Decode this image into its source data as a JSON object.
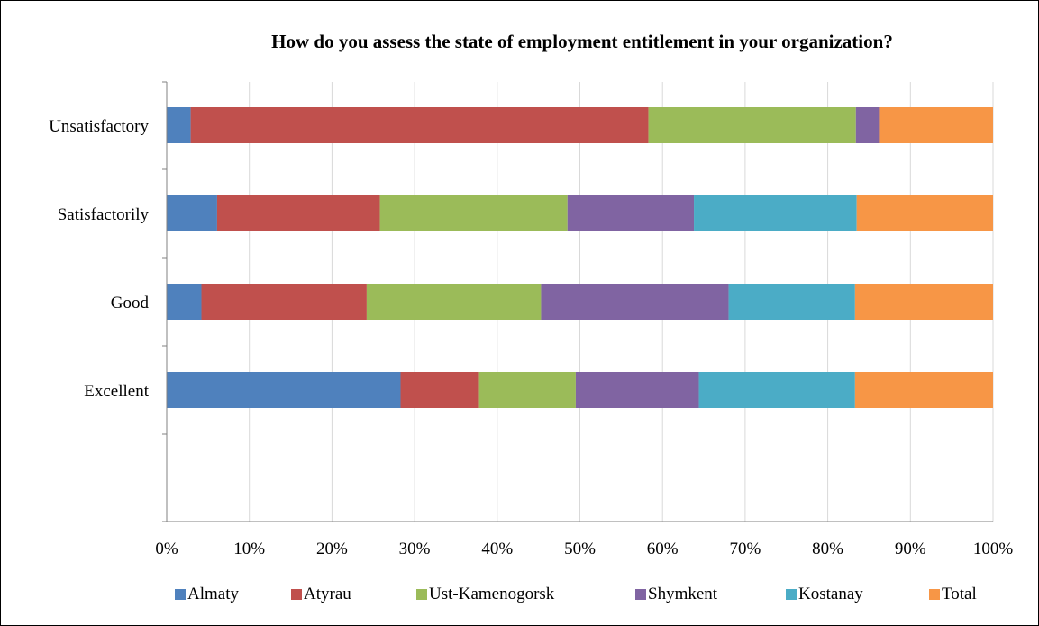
{
  "chart_data": {
    "type": "bar",
    "orientation": "horizontal",
    "stacked": "percent",
    "title": "How do you assess the state of employment entitlement in your organization?",
    "xlabel": "",
    "ylabel": "",
    "xlim": [
      0,
      100
    ],
    "x_ticks": [
      "0%",
      "10%",
      "20%",
      "30%",
      "40%",
      "50%",
      "60%",
      "70%",
      "80%",
      "90%",
      "100%"
    ],
    "categories": [
      "Excellent",
      "Good",
      "Satisfactorily",
      "Unsatisfactory"
    ],
    "series": [
      {
        "name": "Almaty",
        "color": "#4F81BD",
        "values": [
          28.3,
          4.2,
          6.1,
          2.9
        ]
      },
      {
        "name": "Atyrau",
        "color": "#C0504D",
        "values": [
          9.5,
          20.0,
          19.7,
          55.4
        ]
      },
      {
        "name": "Ust-Kamenogorsk",
        "color": "#9BBB59",
        "values": [
          11.7,
          21.1,
          22.7,
          25.1
        ]
      },
      {
        "name": "Shymkent",
        "color": "#8064A2",
        "values": [
          14.9,
          22.7,
          15.3,
          2.8
        ]
      },
      {
        "name": "Kostanay",
        "color": "#4BACC6",
        "values": [
          18.9,
          15.3,
          19.7,
          0
        ]
      },
      {
        "name": "Total",
        "color": "#F79646",
        "values": [
          16.7,
          16.7,
          16.5,
          13.8
        ]
      }
    ],
    "grid": {
      "x": true,
      "y": false
    },
    "legend_position": "bottom"
  }
}
